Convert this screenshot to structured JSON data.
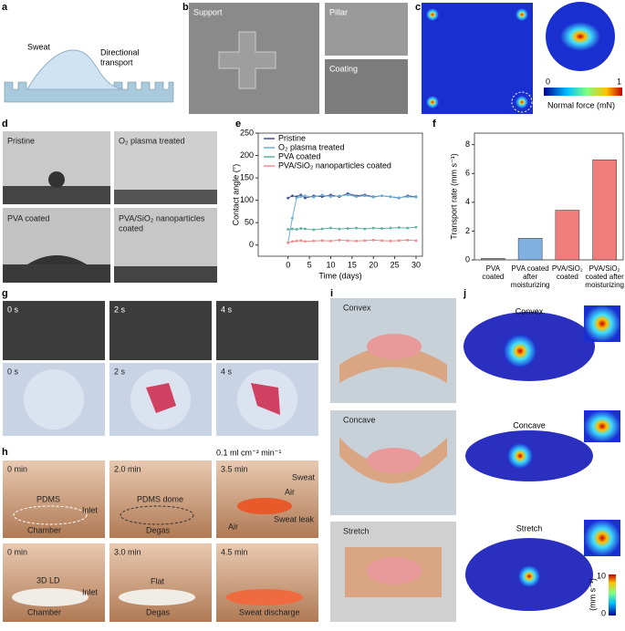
{
  "panels": {
    "labels": [
      "a",
      "b",
      "c",
      "d",
      "e",
      "f",
      "g",
      "h",
      "i",
      "j"
    ],
    "a": {
      "sweat": "Sweat",
      "transport": [
        "Directional",
        "transport"
      ]
    },
    "b": {
      "support": "Support",
      "pillar": "Pillar",
      "coating": "Coating"
    },
    "c": {
      "low": "0",
      "high": "1",
      "unit": "Normal force (mN)"
    },
    "d": {
      "pristine": "Pristine",
      "plasma": "O₂ plasma treated",
      "pva": "PVA coated",
      "sio2": [
        "PVA/SiO₂ nanoparticles",
        "coated"
      ]
    },
    "g": {
      "top": [
        "0 s",
        "2 s",
        "4 s"
      ],
      "bottom": [
        "0 s",
        "2 s",
        "4 s"
      ]
    },
    "h": {
      "rate": "0.1 ml cm⁻² min⁻¹",
      "times": [
        "0 min",
        "2.0 min",
        "3.5 min",
        "0 min",
        "3.0 min",
        "4.5 min"
      ],
      "notes": [
        "PDMS",
        "Inlet",
        "Chamber",
        "PDMS dome",
        "Degas",
        "Sweat",
        "Air",
        "Sweat leak",
        "Air",
        "3D LD",
        "Inlet",
        "Chamber",
        "Flat",
        "Degas",
        "Sweat discharge"
      ]
    },
    "i": {
      "views": [
        "Convex",
        "Concave",
        "Stretch"
      ]
    },
    "j": {
      "views": [
        "Convex",
        "Concave",
        "Stretch"
      ],
      "high": "10",
      "low": "0",
      "unit": "(mm s⁻¹)"
    }
  },
  "chart_data": [
    {
      "type": "line",
      "xlabel": "Time (days)",
      "ylabel": "Contact angle (°)",
      "x": [
        0,
        1,
        2,
        3,
        4,
        6,
        8,
        10,
        12,
        14,
        16,
        18,
        20,
        22,
        24,
        26,
        28,
        30
      ],
      "xlim": [
        -7,
        31.5
      ],
      "xticks": [
        0,
        5,
        10,
        15,
        20,
        25,
        30
      ],
      "ylim": [
        -25,
        250
      ],
      "yticks": [
        0,
        50,
        100,
        150,
        200,
        250
      ],
      "legend": "upper left",
      "series": [
        {
          "name": "Pristine",
          "color": "#3f4f8f",
          "values": [
            105,
            110,
            108,
            112,
            105,
            110,
            108,
            112,
            108,
            115,
            110,
            112,
            108,
            110,
            108,
            105,
            110,
            108
          ]
        },
        {
          "name": "O₂ plasma treated",
          "color": "#6aaed6",
          "values": [
            5,
            60,
            105,
            108,
            110,
            107,
            112,
            108,
            110,
            112,
            108,
            110,
            107,
            110,
            108,
            106,
            108,
            107
          ]
        },
        {
          "name": "PVA coated",
          "color": "#5fb0a0",
          "values": [
            35,
            36,
            35,
            37,
            36,
            34,
            36,
            38,
            36,
            37,
            38,
            36,
            38,
            37,
            38,
            39,
            38,
            40
          ]
        },
        {
          "name": "PVA/SiO₂ nanoparticles coated",
          "color": "#f08a8a",
          "values": [
            5,
            8,
            9,
            10,
            8,
            9,
            10,
            9,
            11,
            10,
            9,
            10,
            11,
            10,
            9,
            10,
            11,
            10
          ]
        }
      ]
    },
    {
      "type": "bar",
      "ylabel": "Transport rate (mm s⁻¹)",
      "categories": [
        [
          "PVA",
          "coated"
        ],
        [
          "PVA coated",
          "after",
          "moisturizing"
        ],
        [
          "PVA/SiO₂",
          "coated"
        ],
        [
          "PVA/SiO₂",
          "coated after",
          "moisturizing"
        ]
      ],
      "values": [
        0.1,
        1.5,
        3.45,
        6.95
      ],
      "colors": [
        "#9a9a9a",
        "#7fb0e0",
        "#f07c7c",
        "#f07c7c"
      ],
      "ylim": [
        0,
        8.8
      ],
      "yticks": [
        0,
        2,
        4,
        6,
        8
      ]
    }
  ]
}
